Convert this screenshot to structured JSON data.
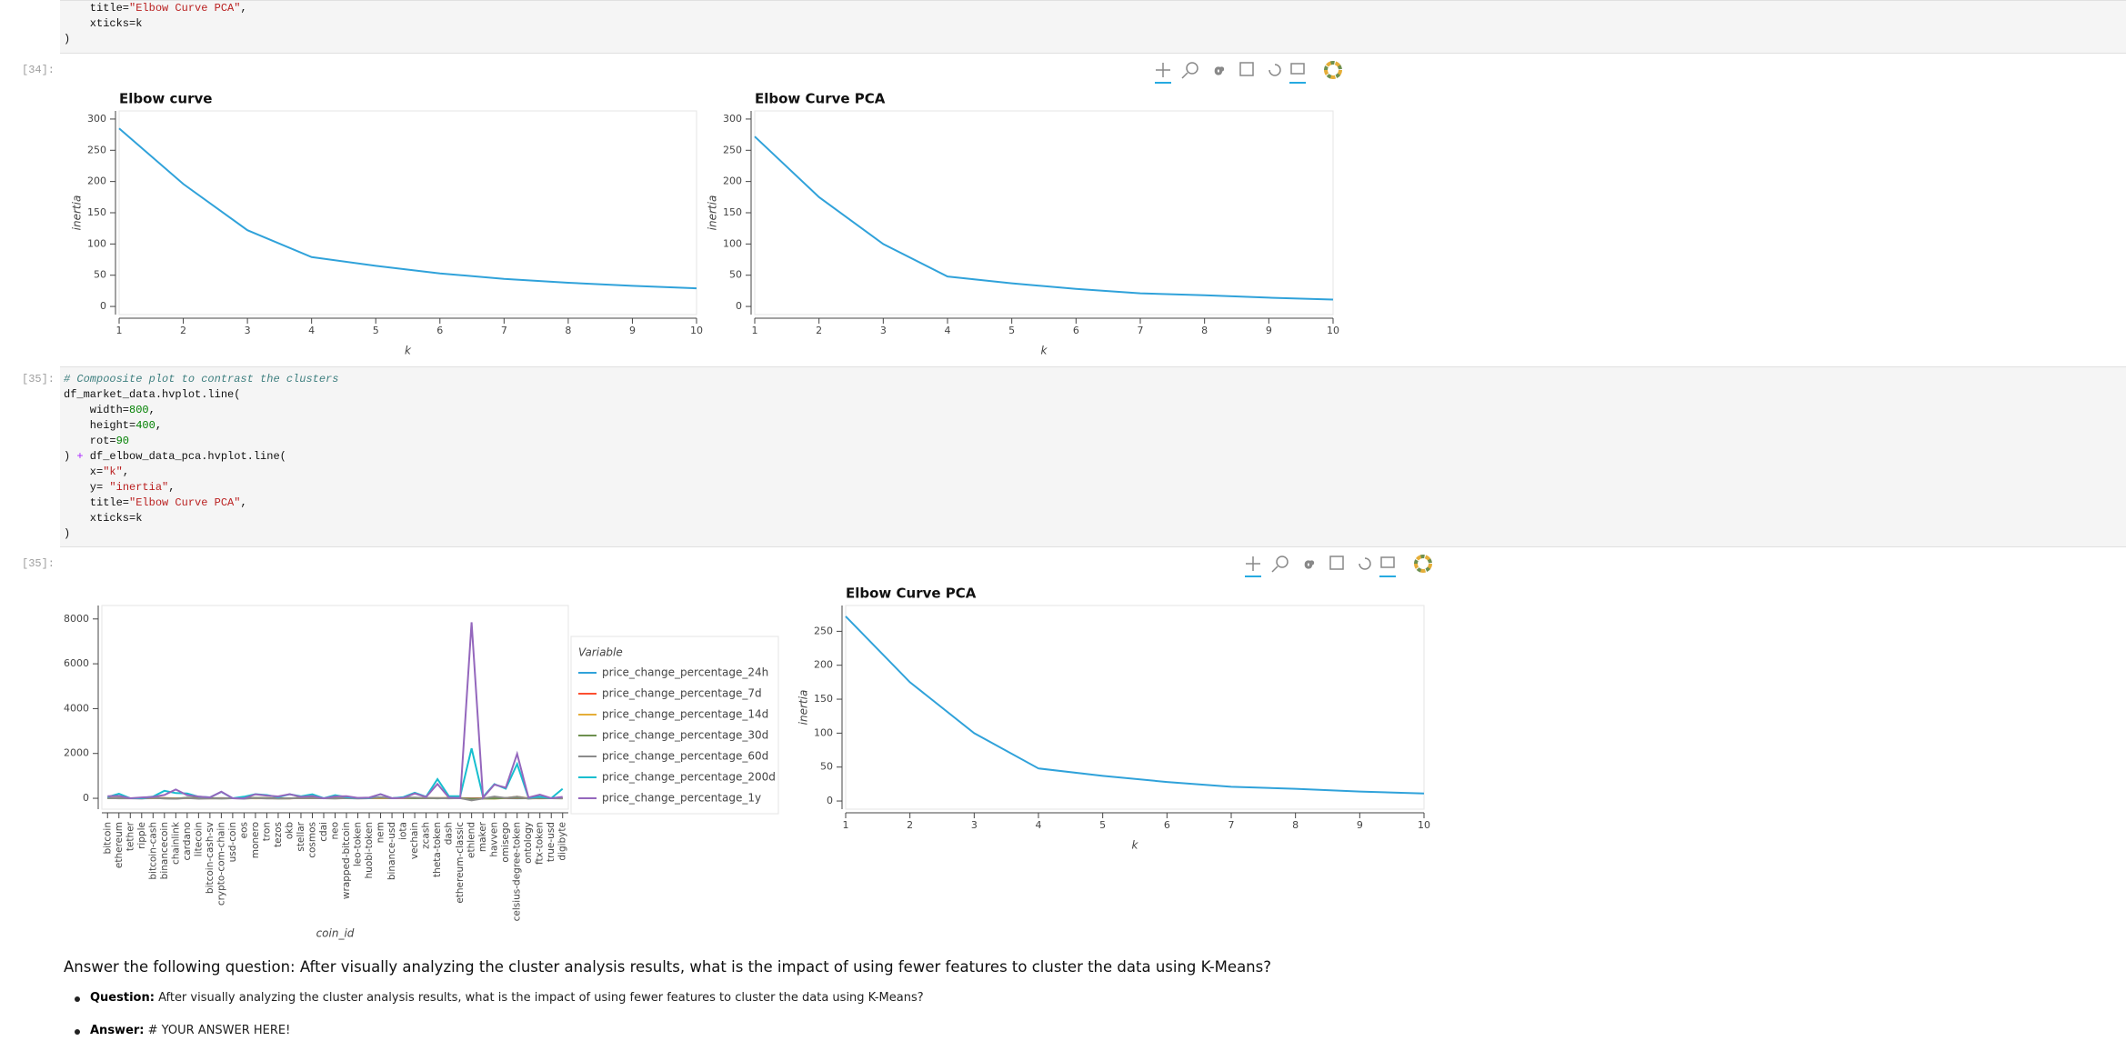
{
  "cells": [
    {
      "code": [
        "    title=\"Elbow Curve PCA\",",
        "    xticks=k",
        ")"
      ]
    },
    {
      "prompt": "[34]:",
      "plots": [
        {
          "title": "Elbow curve",
          "x_label": "k",
          "y_label": "inertia",
          "x": [
            1,
            2,
            3,
            4,
            5,
            6,
            7,
            8,
            9,
            10
          ],
          "values": [
            285,
            196,
            122,
            79,
            65,
            53,
            44,
            38,
            33,
            29
          ],
          "color": "#30a2da",
          "xlim": [
            1,
            10
          ],
          "ylim": [
            -13,
            313
          ],
          "xticks": [
            1,
            2,
            3,
            4,
            5,
            6,
            7,
            8,
            9,
            10
          ],
          "yticks": [
            0,
            50,
            100,
            150,
            200,
            250,
            300
          ]
        },
        {
          "title": "Elbow Curve PCA",
          "x_label": "k",
          "y_label": "inertia",
          "x": [
            1,
            2,
            3,
            4,
            5,
            6,
            7,
            8,
            9,
            10
          ],
          "values": [
            272,
            175,
            100,
            48,
            37,
            28,
            21,
            18,
            14,
            11
          ],
          "color": "#30a2da",
          "xlim": [
            1,
            10
          ],
          "ylim": [
            -13,
            313
          ],
          "xticks": [
            1,
            2,
            3,
            4,
            5,
            6,
            7,
            8,
            9,
            10
          ],
          "yticks": [
            0,
            50,
            100,
            150,
            200,
            250,
            300
          ]
        }
      ]
    },
    {
      "prompt": "[35]:",
      "code": [
        "# Compoosite plot to contrast the clusters",
        "df_market_data.hvplot.line(",
        "    width=800,",
        "    height=400,",
        "    rot=90",
        ") + df_elbow_data_pca.hvplot.line(",
        "    x=\"k\",",
        "    y= \"inertia\",",
        "    title=\"Elbow Curve PCA\",",
        "    xticks=k",
        ")"
      ]
    },
    {
      "prompt": "[35]:",
      "plots": [
        {
          "x_label": "coin_id",
          "legend_title": "Variable",
          "categories": [
            "bitcoin",
            "ethereum",
            "tether",
            "ripple",
            "bitcoin-cash",
            "binancecoin",
            "chainlink",
            "cardano",
            "litecoin",
            "bitcoin-cash-sv",
            "crypto-com-chain",
            "usd-coin",
            "eos",
            "monero",
            "tron",
            "tezos",
            "okb",
            "stellar",
            "cosmos",
            "cdai",
            "neo",
            "wrapped-bitcoin",
            "leo-token",
            "huobi-token",
            "nem",
            "binance-usd",
            "iota",
            "vechain",
            "zcash",
            "theta-token",
            "dash",
            "ethereum-classic",
            "ethlend",
            "maker",
            "havven",
            "omisego",
            "celsius-degree-token",
            "ontology",
            "ftx-token",
            "true-usd",
            "digibyte"
          ],
          "series": [
            {
              "name": "price_change_percentage_24h",
              "color": "#30a2da",
              "values": [
                1.08,
                0.22,
                -0.21,
                -0.37,
                2.91,
                2.1,
                -0.24,
                0.8,
                -0.17,
                2.66,
                4.13,
                -0.05,
                0.98,
                1.04,
                1.6,
                0.46,
                0.97,
                0.13,
                -0.23,
                0.17,
                0.18,
                1.1,
                -0.75,
                0.67,
                0.19,
                -0.04,
                0.39,
                0.92,
                1.1,
                -0.25,
                1.62,
                0.8,
                -0.14,
                1.34,
                3.82,
                0.36,
                -0.64,
                1.02,
                2.24,
                0.09,
                2.22
              ]
            },
            {
              "name": "price_change_percentage_7d",
              "color": "#fc4f30",
              "values": [
                7.12,
                10.21,
                0.0,
                -0.61,
                17.1,
                12.97,
                -0.91,
                7.1,
                4.92,
                3.29,
                5.09,
                -0.03,
                7.26,
                4.72,
                5.67,
                5.06,
                -2.54,
                7.49,
                8.15,
                0.04,
                3.55,
                7.09,
                2.26,
                4.68,
                6.42,
                -0.06,
                13.25,
                9.04,
                5.89,
                3.68,
                11.29,
                8.01,
                -11.01,
                6.61,
                5.72,
                7.27,
                19.93,
                0.82,
                -2.49,
                -0.03,
                13.71
              ]
            },
            {
              "name": "price_change_percentage_14d",
              "color": "#e5ae38",
              "values": [
                6.5,
                0.02,
                0.0,
                1.0,
                14.45,
                -1.09,
                -1.58,
                3.42,
                3.09,
                -2.61,
                3.24,
                0.0,
                4.22,
                -0.41,
                0.43,
                -3.31,
                -3.21,
                9.52,
                11.39,
                0.04,
                6.05,
                6.37,
                -0.71,
                2.1,
                4.07,
                0.06,
                8.12,
                8.59,
                15.36,
                13.12,
                15.59,
                4.44,
                -36.33,
                -2.56,
                -13.12,
                10.0,
                70.82,
                0.67,
                4.3,
                0.03,
                9.21
              ]
            },
            {
              "name": "price_change_percentage_30d",
              "color": "#6d904f",
              "values": [
                7.08,
                13.61,
                0.04,
                -0.07,
                21.08,
                0.31,
                -13.93,
                26.29,
                19.97,
                14.55,
                -4.88,
                0.01,
                7.41,
                20.04,
                8.34,
                -7.69,
                -2.67,
                24.68,
                23.33,
                0.02,
                -2.54,
                7.09,
                0.59,
                4.21,
                33.08,
                0.01,
                27.41,
                1.29,
                12.36,
                -4.11,
                11.94,
                7.76,
                -32.02,
                -9.61,
                -8.76,
                14.26,
                33.92,
                -10.71,
                4.3,
                -0.01,
                -2.73
              ]
            },
            {
              "name": "price_change_percentage_60d",
              "color": "#8b8b8b",
              "values": [
                6.09,
                -1.08,
                0.07,
                -8.45,
                21.49,
                -11.14,
                -20.27,
                8.61,
                -18.47,
                -10.03,
                -4.72,
                -0.01,
                -18.15,
                10.31,
                -7.54,
                -9.17,
                -0.75,
                8.53,
                4.22,
                -0.05,
                -7.59,
                6.09,
                -0.41,
                -0.31,
                46.54,
                -0.02,
                30.55,
                28.6,
                9.67,
                8.82,
                -1.05,
                5.9,
                -95.65,
                -10.22,
                77.61,
                12.54,
                70.13,
                -15.27,
                26.91,
                -0.05,
                -0.93
              ]
            },
            {
              "name": "price_change_percentage_200d",
              "color": "#17becf",
              "values": [
                55.3,
                203.8,
                -0.09,
                5.4,
                80.3,
                335.6,
                234.6,
                214.3,
                71.8,
                43.5,
                286.9,
                0.0,
                70.2,
                183.9,
                144.8,
                52.5,
                176.7,
                90.4,
                177.8,
                0.2,
                137.2,
                55.5,
                8.3,
                18.6,
                182.9,
                -0.04,
                55.2,
                247.1,
                69.7,
                857.2,
                93.2,
                96.7,
                2227.9,
                62.1,
                628.5,
                426.1,
                1530.0,
                27.4,
                74.4,
                0.1,
                421.5
              ]
            },
            {
              "name": "price_change_percentage_1y",
              "color": "#9467bd",
              "values": [
                95.8,
                106.7,
                -0.05,
                38.8,
                61.0,
                149.6,
                390.3,
                140.2,
                77.9,
                38.3,
                294.5,
                0.06,
                -7.9,
                181.2,
                119.4,
                81.5,
                182.6,
                64.4,
                104.2,
                -1.75,
                81.2,
                96.8,
                19.2,
                35.1,
                178.7,
                0.07,
                23.3,
                211.1,
                59.6,
                637.5,
                34.5,
                15.2,
                7852.1,
                26.6,
                610.4,
                474.6,
                1986.0,
                34.9,
                161.0,
                0.02,
                64.3
              ]
            }
          ],
          "ylim": [
            -485,
            8600
          ],
          "yticks": [
            0,
            2000,
            4000,
            6000,
            8000
          ]
        },
        {
          "title": "Elbow Curve PCA",
          "x_label": "k",
          "y_label": "inertia",
          "x": [
            1,
            2,
            3,
            4,
            5,
            6,
            7,
            8,
            9,
            10
          ],
          "values": [
            272,
            175,
            100,
            48,
            37,
            28,
            21,
            18,
            14,
            11
          ],
          "color": "#30a2da",
          "xlim": [
            1,
            10
          ],
          "ylim": [
            -12,
            288
          ],
          "xticks": [
            1,
            2,
            3,
            4,
            5,
            6,
            7,
            8,
            9,
            10
          ],
          "yticks": [
            0,
            50,
            100,
            150,
            200,
            250
          ]
        }
      ]
    }
  ],
  "markdown": {
    "heading": "Answer the following question: After visually analyzing the cluster analysis results, what is the impact of using fewer features to cluster the data using K-Means?",
    "items": [
      {
        "label": "Question:",
        "text": "After visually analyzing the cluster analysis results, what is the impact of using fewer features to cluster the data using K-Means?"
      },
      {
        "label": "Answer:",
        "text": "# YOUR ANSWER HERE!"
      }
    ]
  }
}
